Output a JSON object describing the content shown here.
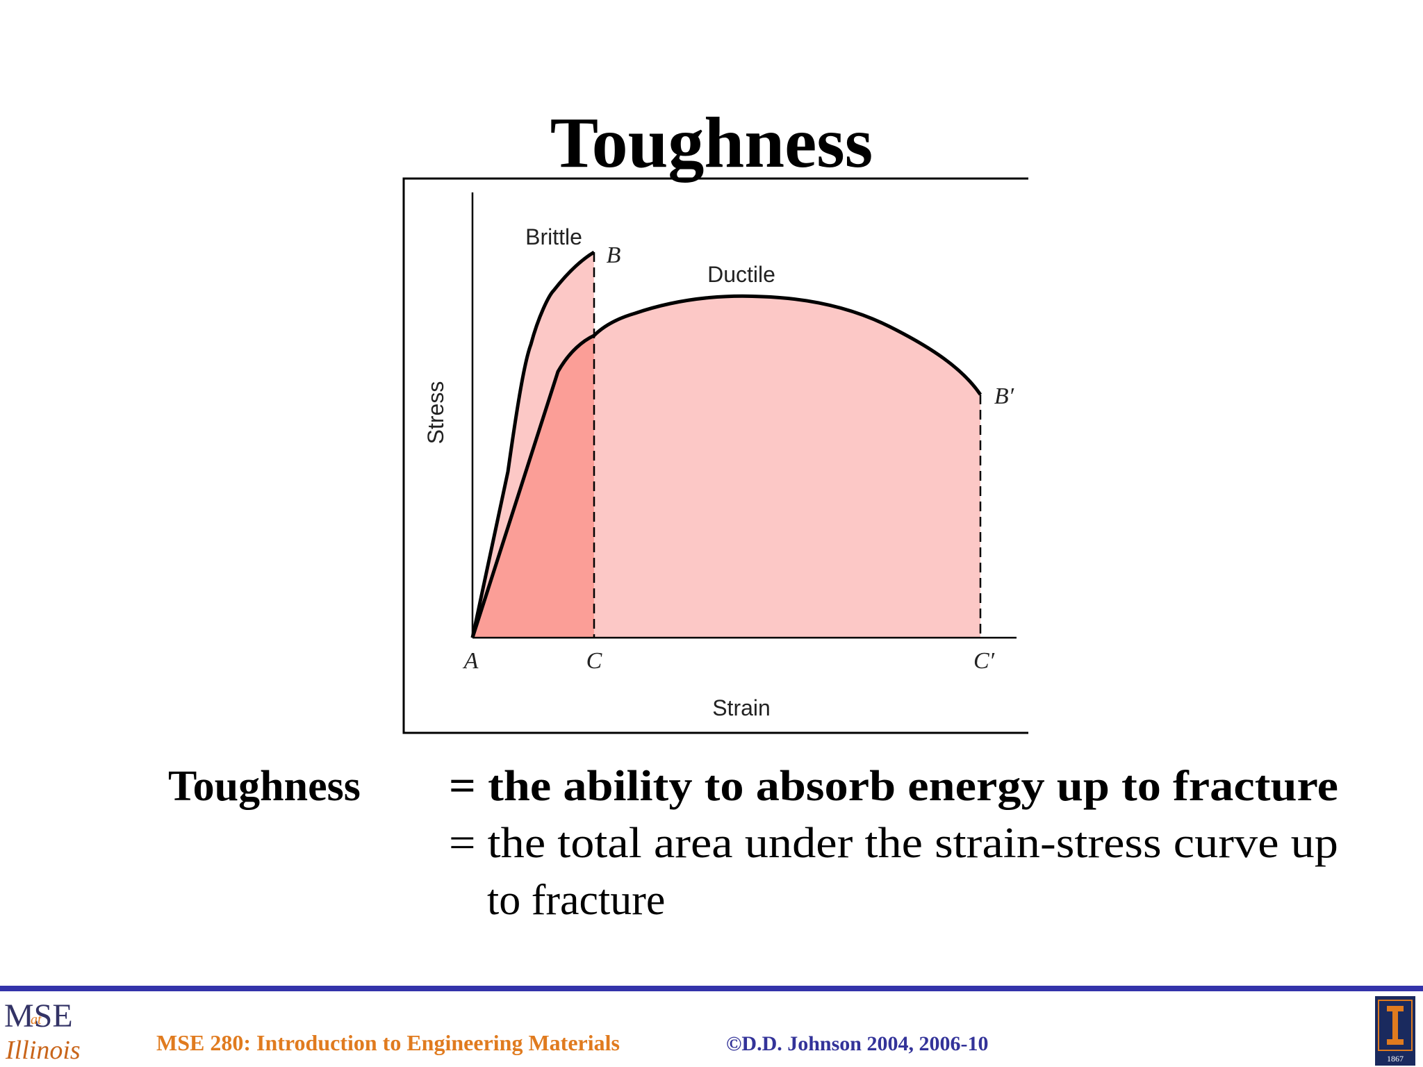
{
  "title": "Toughness",
  "figure": {
    "curve_labels": {
      "brittle": "Brittle",
      "ductile": "Ductile"
    },
    "point_labels": {
      "b": "B",
      "b_prime": "B′",
      "a": "A",
      "c": "C",
      "c_prime": "C′"
    },
    "axis_labels": {
      "y": "Stress",
      "x": "Strain"
    }
  },
  "definition": {
    "term": "Toughness",
    "line1": "= the ability to absorb energy up to fracture",
    "line2": "= the total area under the strain-stress curve up",
    "line3": "to fracture"
  },
  "footer": {
    "logo_top": "MSE",
    "logo_small": "at",
    "logo_bottom": "Illinois",
    "course": "MSE 280: Introduction to Engineering Materials",
    "copyright": "©D.D. Johnson 2004, 2006-10",
    "seal_year": "1867"
  }
}
